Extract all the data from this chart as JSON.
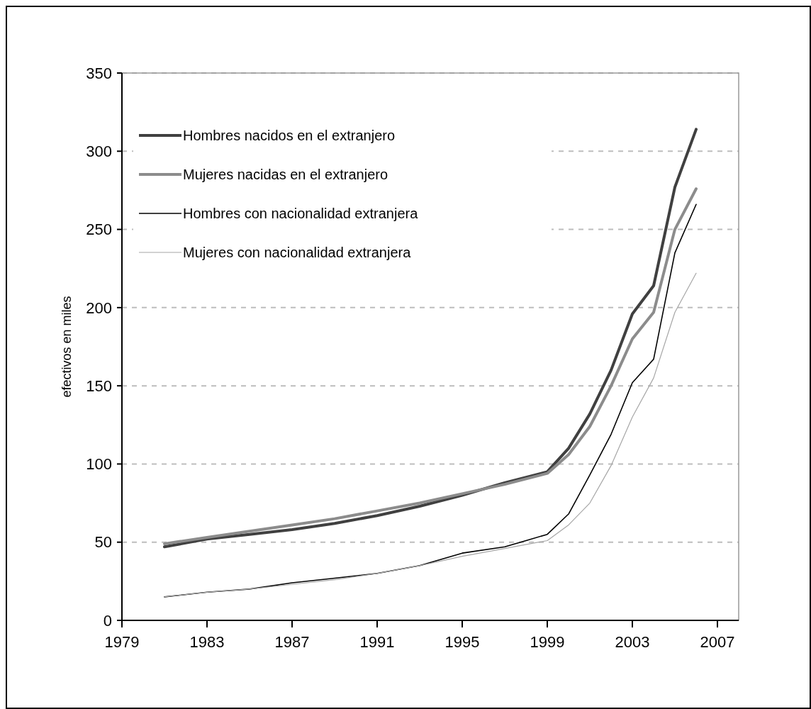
{
  "chart_data": {
    "type": "line",
    "ylabel": "efectivos en miles",
    "x": [
      1981,
      1983,
      1985,
      1987,
      1989,
      1991,
      1993,
      1995,
      1997,
      1999,
      2000,
      2001,
      2002,
      2003,
      2004,
      2005,
      2006
    ],
    "series": [
      {
        "name": "Hombres nacidos en el extranjero",
        "color": "#404040",
        "values": [
          47,
          52,
          55,
          58,
          62,
          67,
          73,
          80,
          88,
          95,
          110,
          132,
          160,
          196,
          214,
          277,
          314
        ]
      },
      {
        "name": "Mujeres nacidas en el extranjero",
        "color": "#8c8c8c",
        "values": [
          49,
          53,
          57,
          61,
          65,
          70,
          75,
          81,
          87,
          94,
          106,
          124,
          150,
          180,
          197,
          250,
          276
        ]
      },
      {
        "name": "Hombres con nacionalidad extranjera",
        "color": "#000000",
        "values": [
          15,
          18,
          20,
          24,
          27,
          30,
          35,
          43,
          47,
          55,
          68,
          93,
          119,
          152,
          167,
          235,
          266
        ]
      },
      {
        "name": "Mujeres con nacionalidad extranjera",
        "color": "#a6a6a6",
        "values": [
          15,
          18,
          20,
          23,
          26,
          30,
          35,
          41,
          46,
          51,
          61,
          75,
          99,
          130,
          155,
          197,
          222
        ]
      }
    ],
    "xlim": [
      1979,
      2008
    ],
    "xticks": [
      1979,
      1983,
      1987,
      1991,
      1995,
      1999,
      2003,
      2007
    ],
    "ylim": [
      0,
      350
    ],
    "yticks": [
      0,
      50,
      100,
      150,
      200,
      250,
      300,
      350
    ],
    "grid": "y",
    "legend": "top left"
  }
}
